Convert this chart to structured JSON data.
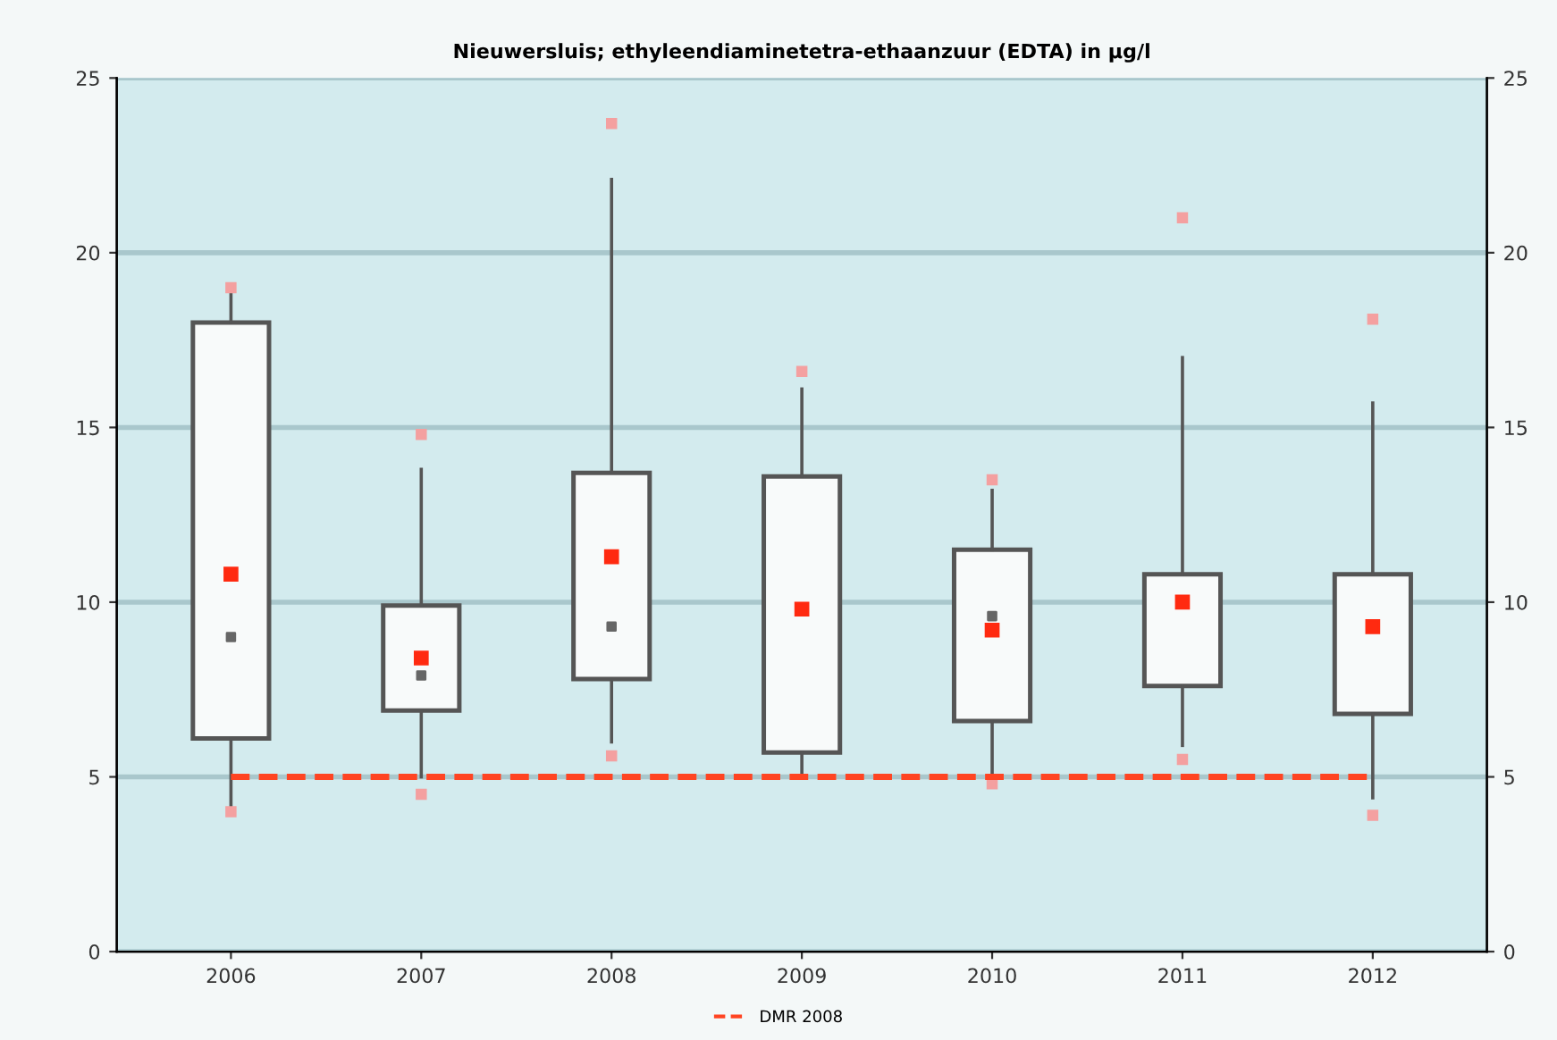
{
  "chart_data": {
    "type": "box",
    "title": "Nieuwersluis; ethyleendiaminetetra-ethaanzuur (EDTA) in µg/l",
    "categories": [
      "2006",
      "2007",
      "2008",
      "2009",
      "2010",
      "2011",
      "2012"
    ],
    "boxes": [
      {
        "low": 4.1,
        "q1": 6.1,
        "median": 9.0,
        "q3": 18.0,
        "high": 19.0,
        "mean": 10.8,
        "outliers": [
          4.0,
          19.0
        ]
      },
      {
        "low": 5.0,
        "q1": 6.9,
        "median": 7.9,
        "q3": 9.9,
        "high": 13.8,
        "mean": 8.4,
        "outliers": [
          4.5,
          14.8
        ]
      },
      {
        "low": 6.0,
        "q1": 7.8,
        "median": 9.3,
        "q3": 13.7,
        "high": 22.1,
        "mean": 11.3,
        "outliers": [
          5.6,
          23.7
        ]
      },
      {
        "low": 5.0,
        "q1": 5.7,
        "median": null,
        "q3": 13.6,
        "high": 16.1,
        "mean": 9.8,
        "outliers": [
          16.6
        ]
      },
      {
        "low": 5.0,
        "q1": 6.6,
        "median": 9.6,
        "q3": 11.5,
        "high": 13.2,
        "mean": 9.2,
        "outliers": [
          4.8,
          13.5
        ]
      },
      {
        "low": 5.9,
        "q1": 7.6,
        "median": null,
        "q3": 10.8,
        "high": 17.0,
        "mean": 10.0,
        "outliers": [
          5.5,
          21.0
        ]
      },
      {
        "low": 4.4,
        "q1": 6.8,
        "median": null,
        "q3": 10.8,
        "high": 15.7,
        "mean": 9.3,
        "outliers": [
          3.9,
          18.1
        ]
      }
    ],
    "ylim": [
      0,
      25
    ],
    "yticks": [
      0,
      5,
      10,
      15,
      20,
      25
    ],
    "y2lim": [
      0,
      25
    ],
    "y2ticks": [
      0,
      5,
      10,
      15,
      20,
      25
    ],
    "ref_lines": [
      {
        "axis": "y",
        "value": 5,
        "label": "DMR 2008",
        "color": "#ff4422",
        "line_style": "dashed"
      }
    ],
    "grid": "y",
    "legend": "bottom"
  }
}
